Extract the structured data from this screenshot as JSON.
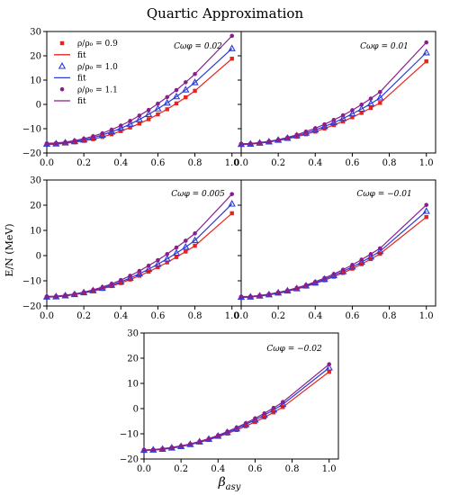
{
  "figure": {
    "title": "Quartic Approximation",
    "ylabel": "E/N (MeV)",
    "xlabel": "βasy",
    "xlabel_base": "β",
    "xlabel_sub": "asy"
  },
  "legend": [
    {
      "label": "ρ/ρ₀ = 0.9",
      "marker": "square",
      "color": "#e8221d"
    },
    {
      "label": "fit",
      "marker": "line",
      "color": "#e8221d"
    },
    {
      "label": "ρ/ρ₀ = 1.0",
      "marker": "triangle",
      "color": "#2a3bd6"
    },
    {
      "label": "fit",
      "marker": "line",
      "color": "#2a3bd6"
    },
    {
      "label": "ρ/ρ₀ = 1.1",
      "marker": "circle",
      "color": "#8a1e8f"
    },
    {
      "label": "fit",
      "marker": "line",
      "color": "#8a1e8f"
    }
  ],
  "colors": {
    "rho09": "#e8221d",
    "rho10": "#2a3bd6",
    "rho11": "#8a1e8f"
  },
  "chart_data": [
    {
      "type": "line",
      "annotation": "Cωφ = 0.02",
      "x": [
        0.0,
        0.05,
        0.1,
        0.15,
        0.2,
        0.25,
        0.3,
        0.35,
        0.4,
        0.45,
        0.5,
        0.55,
        0.6,
        0.65,
        0.7,
        0.75,
        0.8,
        1.0
      ],
      "xlim": [
        0.0,
        1.05
      ],
      "ylim": [
        -20,
        30
      ],
      "xticks": [
        0.0,
        0.2,
        0.4,
        0.6,
        0.8,
        1.0
      ],
      "yticks": [
        -20,
        -10,
        0,
        10,
        20,
        30
      ],
      "series": [
        {
          "name": "ρ/ρ₀ = 0.9",
          "marker": "square",
          "color": "#e8221d",
          "values": [
            -16.5,
            -16.4,
            -16.0,
            -15.6,
            -15.0,
            -14.3,
            -13.4,
            -12.3,
            -11.0,
            -9.5,
            -7.9,
            -6.1,
            -4.1,
            -2.0,
            0.4,
            2.9,
            5.6,
            18.8
          ]
        },
        {
          "name": "ρ/ρ₀ = 1.0",
          "marker": "triangle",
          "color": "#2a3bd6",
          "values": [
            -16.3,
            -16.2,
            -15.8,
            -15.3,
            -14.6,
            -13.7,
            -12.6,
            -11.3,
            -9.8,
            -8.1,
            -6.2,
            -4.1,
            -1.8,
            0.6,
            3.2,
            6.0,
            9.0,
            23.0
          ]
        },
        {
          "name": "ρ/ρ₀ = 1.1",
          "marker": "circle",
          "color": "#8a1e8f",
          "values": [
            -16.0,
            -15.9,
            -15.5,
            -14.9,
            -14.1,
            -13.1,
            -11.9,
            -10.4,
            -8.7,
            -6.8,
            -4.6,
            -2.3,
            0.3,
            3.0,
            5.9,
            9.1,
            12.5,
            28.2
          ]
        }
      ]
    },
    {
      "type": "line",
      "annotation": "Cωφ = 0.01",
      "x": [
        0.0,
        0.05,
        0.1,
        0.15,
        0.2,
        0.25,
        0.3,
        0.35,
        0.4,
        0.45,
        0.5,
        0.55,
        0.6,
        0.65,
        0.7,
        0.75,
        1.0
      ],
      "xlim": [
        0.0,
        1.05
      ],
      "ylim": [
        -20,
        30
      ],
      "xticks": [
        0.0,
        0.2,
        0.4,
        0.6,
        0.8,
        1.0
      ],
      "yticks": [
        -20,
        -10,
        0,
        10,
        20,
        30
      ],
      "series": [
        {
          "name": "ρ/ρ₀ = 0.9",
          "marker": "square",
          "color": "#e8221d",
          "values": [
            -16.5,
            -16.4,
            -16.0,
            -15.5,
            -14.9,
            -14.2,
            -13.3,
            -12.3,
            -11.2,
            -9.9,
            -8.5,
            -7.0,
            -5.3,
            -3.5,
            -1.5,
            0.6,
            17.7
          ]
        },
        {
          "name": "ρ/ρ₀ = 1.0",
          "marker": "triangle",
          "color": "#2a3bd6",
          "values": [
            -16.4,
            -16.3,
            -15.9,
            -15.4,
            -14.7,
            -13.9,
            -12.9,
            -11.8,
            -10.5,
            -9.1,
            -7.5,
            -5.8,
            -3.9,
            -1.9,
            0.3,
            2.7,
            21.3
          ]
        },
        {
          "name": "ρ/ρ₀ = 1.1",
          "marker": "circle",
          "color": "#8a1e8f",
          "values": [
            -16.2,
            -16.1,
            -15.7,
            -15.2,
            -14.5,
            -13.6,
            -12.5,
            -11.2,
            -9.8,
            -8.2,
            -6.4,
            -4.5,
            -2.4,
            -0.1,
            2.4,
            5.1,
            25.5
          ]
        }
      ]
    },
    {
      "type": "line",
      "annotation": "Cωφ = 0.005",
      "x": [
        0.0,
        0.05,
        0.1,
        0.15,
        0.2,
        0.25,
        0.3,
        0.35,
        0.4,
        0.45,
        0.5,
        0.55,
        0.6,
        0.65,
        0.7,
        0.75,
        0.8,
        1.0
      ],
      "xlim": [
        0.0,
        1.05
      ],
      "ylim": [
        -20,
        30
      ],
      "xticks": [
        0.0,
        0.2,
        0.4,
        0.6,
        0.8,
        1.0
      ],
      "yticks": [
        -20,
        -10,
        0,
        10,
        20,
        30
      ],
      "series": [
        {
          "name": "ρ/ρ₀ = 0.9",
          "marker": "square",
          "color": "#e8221d",
          "values": [
            -16.5,
            -16.4,
            -16.0,
            -15.5,
            -14.9,
            -14.1,
            -13.2,
            -12.1,
            -10.9,
            -9.5,
            -8.0,
            -6.4,
            -4.6,
            -2.7,
            -0.6,
            1.6,
            3.9,
            16.8
          ]
        },
        {
          "name": "ρ/ρ₀ = 1.0",
          "marker": "triangle",
          "color": "#2a3bd6",
          "values": [
            -16.4,
            -16.3,
            -15.9,
            -15.4,
            -14.7,
            -13.9,
            -12.9,
            -11.7,
            -10.4,
            -8.9,
            -7.2,
            -5.4,
            -3.4,
            -1.3,
            1.0,
            3.4,
            6.0,
            20.5
          ]
        },
        {
          "name": "ρ/ρ₀ = 1.1",
          "marker": "circle",
          "color": "#8a1e8f",
          "values": [
            -16.2,
            -16.1,
            -15.7,
            -15.2,
            -14.5,
            -13.6,
            -12.5,
            -11.2,
            -9.7,
            -8.0,
            -6.1,
            -4.0,
            -1.8,
            0.6,
            3.2,
            5.9,
            8.8,
            24.4
          ]
        }
      ]
    },
    {
      "type": "line",
      "annotation": "Cωφ = −0.01",
      "x": [
        0.0,
        0.05,
        0.1,
        0.15,
        0.2,
        0.25,
        0.3,
        0.35,
        0.4,
        0.45,
        0.5,
        0.55,
        0.6,
        0.65,
        0.7,
        0.75,
        1.0
      ],
      "xlim": [
        0.0,
        1.05
      ],
      "ylim": [
        -20,
        30
      ],
      "xticks": [
        0.0,
        0.2,
        0.4,
        0.6,
        0.8,
        1.0
      ],
      "yticks": [
        -20,
        -10,
        0,
        10,
        20,
        30
      ],
      "series": [
        {
          "name": "ρ/ρ₀ = 0.9",
          "marker": "square",
          "color": "#e8221d",
          "values": [
            -16.6,
            -16.5,
            -16.1,
            -15.6,
            -15.0,
            -14.2,
            -13.3,
            -12.3,
            -11.1,
            -9.8,
            -8.4,
            -6.9,
            -5.2,
            -3.4,
            -1.4,
            0.7,
            15.3
          ]
        },
        {
          "name": "ρ/ρ₀ = 1.0",
          "marker": "triangle",
          "color": "#2a3bd6",
          "values": [
            -16.5,
            -16.4,
            -16.0,
            -15.5,
            -14.8,
            -14.0,
            -13.1,
            -12.0,
            -10.8,
            -9.4,
            -7.9,
            -6.3,
            -4.5,
            -2.6,
            -0.5,
            1.7,
            17.6
          ]
        },
        {
          "name": "ρ/ρ₀ = 1.1",
          "marker": "circle",
          "color": "#8a1e8f",
          "values": [
            -16.3,
            -16.2,
            -15.8,
            -15.3,
            -14.6,
            -13.8,
            -12.8,
            -11.7,
            -10.4,
            -8.9,
            -7.3,
            -5.6,
            -3.7,
            -1.6,
            0.6,
            2.9,
            20.1
          ]
        }
      ]
    },
    {
      "type": "line",
      "annotation": "Cωφ = −0.02",
      "x": [
        0.0,
        0.05,
        0.1,
        0.15,
        0.2,
        0.25,
        0.3,
        0.35,
        0.4,
        0.45,
        0.5,
        0.55,
        0.6,
        0.65,
        0.7,
        0.75,
        1.0
      ],
      "xlim": [
        0.0,
        1.05
      ],
      "ylim": [
        -20,
        30
      ],
      "xticks": [
        0.0,
        0.2,
        0.4,
        0.6,
        0.8,
        1.0
      ],
      "yticks": [
        -20,
        -10,
        0,
        10,
        20,
        30
      ],
      "series": [
        {
          "name": "ρ/ρ₀ = 0.9",
          "marker": "square",
          "color": "#e8221d",
          "values": [
            -16.6,
            -16.5,
            -16.2,
            -15.7,
            -15.1,
            -14.3,
            -13.4,
            -12.4,
            -11.2,
            -9.9,
            -8.5,
            -7.0,
            -5.3,
            -3.5,
            -1.5,
            0.6,
            14.6
          ]
        },
        {
          "name": "ρ/ρ₀ = 1.0",
          "marker": "triangle",
          "color": "#2a3bd6",
          "values": [
            -16.5,
            -16.4,
            -16.1,
            -15.6,
            -15.0,
            -14.2,
            -13.2,
            -12.1,
            -10.9,
            -9.5,
            -8.0,
            -6.3,
            -4.5,
            -2.6,
            -0.5,
            1.7,
            16.2
          ]
        },
        {
          "name": "ρ/ρ₀ = 1.1",
          "marker": "circle",
          "color": "#8a1e8f",
          "values": [
            -16.4,
            -16.3,
            -15.9,
            -15.4,
            -14.8,
            -14.0,
            -13.0,
            -11.9,
            -10.6,
            -9.1,
            -7.5,
            -5.8,
            -3.9,
            -1.9,
            0.3,
            2.6,
            17.6
          ]
        }
      ]
    }
  ]
}
